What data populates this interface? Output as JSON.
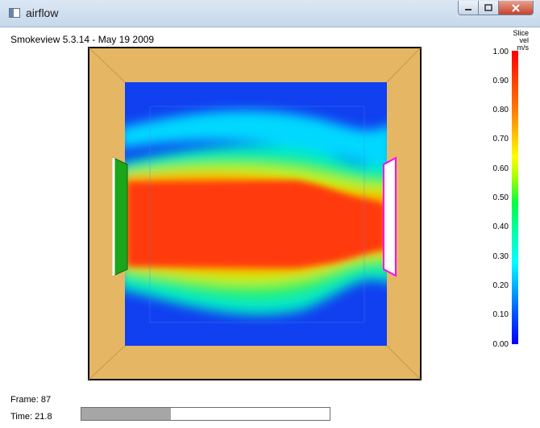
{
  "window": {
    "title": "airflow",
    "icon": "app-window-icon",
    "controls": [
      "minimize",
      "maximize",
      "close"
    ]
  },
  "header": {
    "version": "Smokeview 5.3.14 - May 19 2009"
  },
  "colorbar": {
    "header": [
      "Slice",
      "vel",
      "m/s"
    ],
    "labels": [
      "1.00",
      "0.90",
      "0.80",
      "0.70",
      "0.60",
      "0.50",
      "0.40",
      "0.30",
      "0.20",
      "0.10",
      "0.00"
    ],
    "colors": {
      "max": "#ff0000",
      "mid": "#00ff40",
      "min": "#0000ff"
    }
  },
  "scene": {
    "wall_color": "#e5b765",
    "inlet_color": "#1aa51a",
    "outlet_color": "#ff00ff"
  },
  "footer": {
    "frame": "Frame: 87",
    "time": "Time: 21.8",
    "progress": 0.36
  }
}
